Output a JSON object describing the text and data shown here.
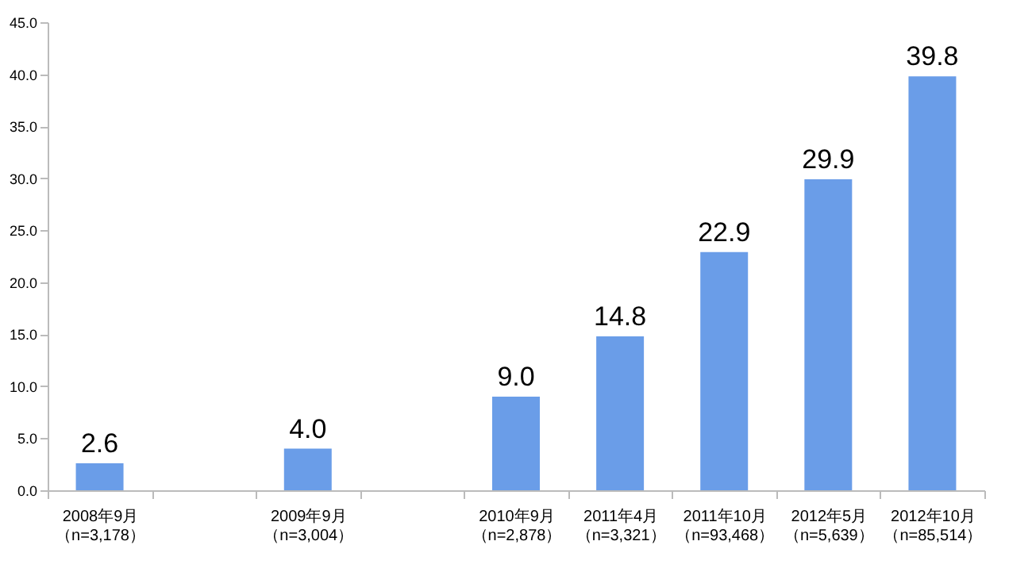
{
  "chart_data": {
    "type": "bar",
    "categories": [
      "2008年9月（n=3,178）",
      null,
      "2009年9月（n=3,004）",
      null,
      "2010年9月（n=2,878）",
      "2011年4月（n=3,321）",
      "2011年10月（n=93,468）",
      "2012年5月（n=5,639）",
      "2012年10月（n=85,514）"
    ],
    "values": [
      2.6,
      null,
      4.0,
      null,
      9.0,
      14.8,
      22.9,
      29.9,
      39.8
    ],
    "value_labels": [
      "2.6",
      null,
      "4.0",
      null,
      "9.0",
      "14.8",
      "22.9",
      "29.9",
      "39.8"
    ],
    "color": "#6a9de8",
    "ylim": [
      0,
      45
    ],
    "yticks": [
      {
        "value": 0,
        "label": "0.0"
      },
      {
        "value": 5,
        "label": "5.0"
      },
      {
        "value": 10,
        "label": "10.0"
      },
      {
        "value": 15,
        "label": "15.0"
      },
      {
        "value": 20,
        "label": "20.0"
      },
      {
        "value": 25,
        "label": "25.0"
      },
      {
        "value": 30,
        "label": "30.0"
      },
      {
        "value": 35,
        "label": "35.0"
      },
      {
        "value": 40,
        "label": "40.0"
      },
      {
        "value": 45,
        "label": "45.0"
      }
    ],
    "grid": false
  }
}
